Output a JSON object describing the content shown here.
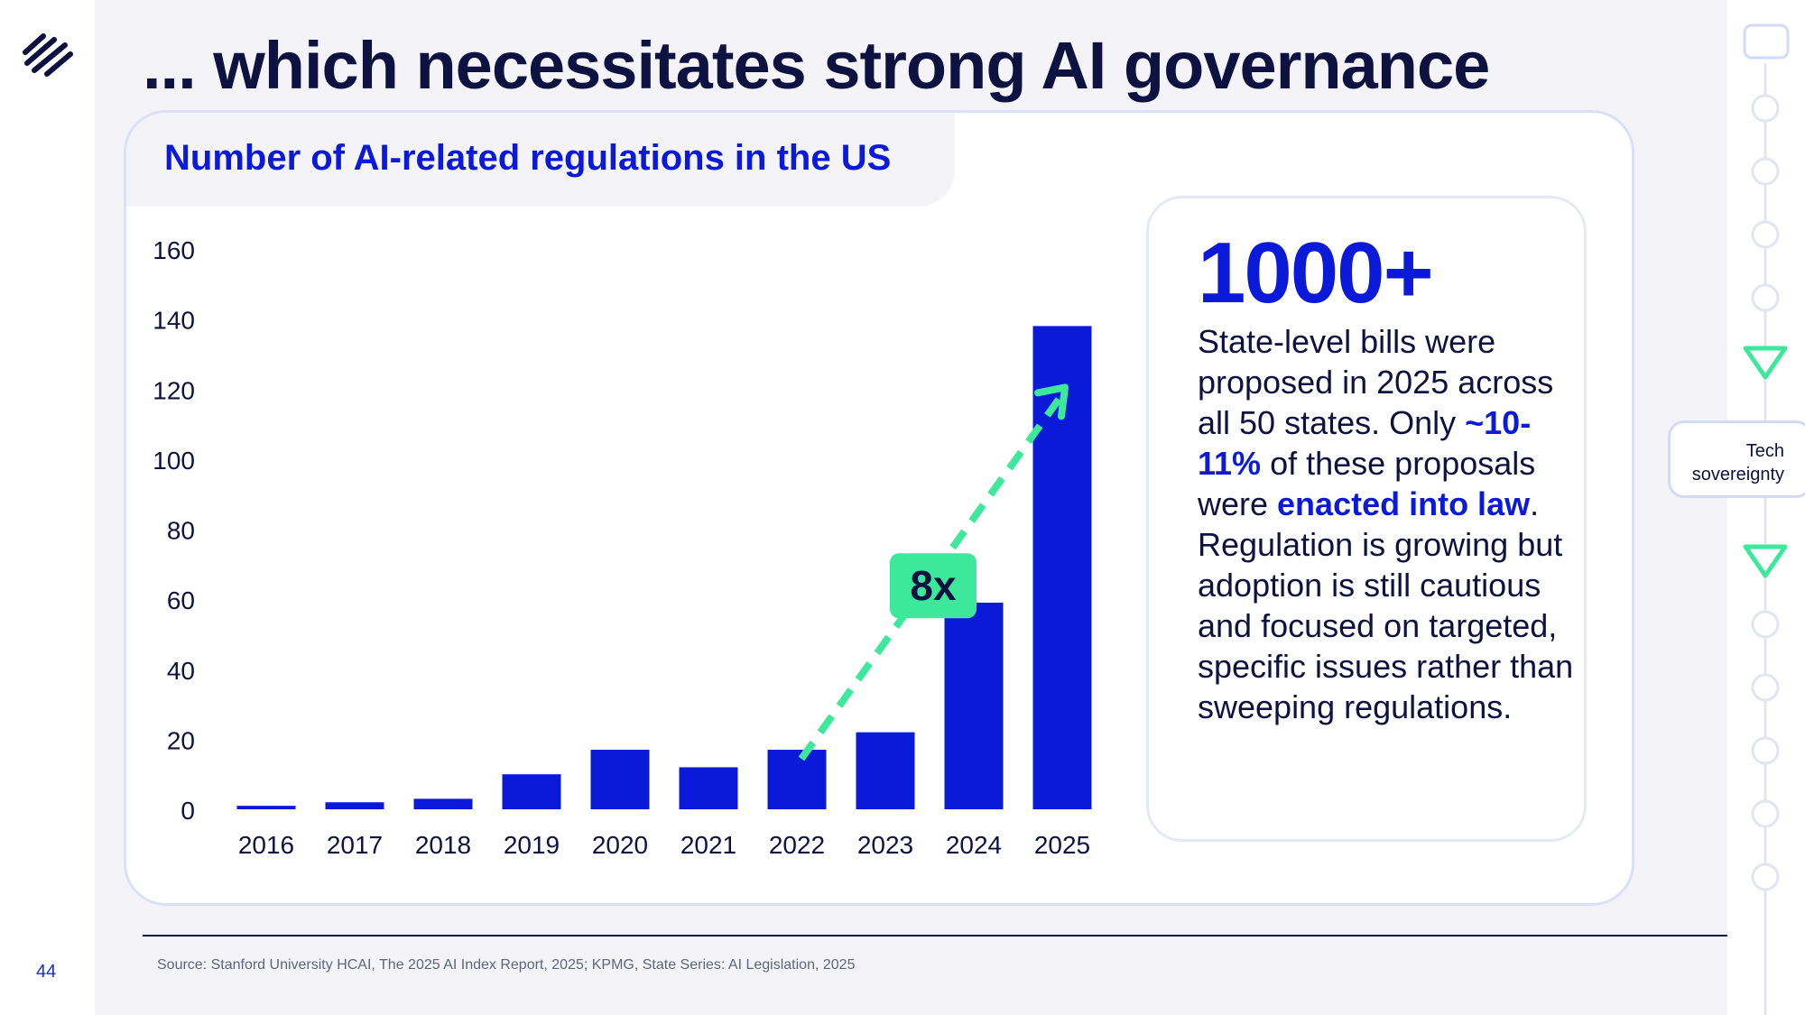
{
  "slide": {
    "title": "... which necessitates strong AI governance",
    "page_number": "44",
    "source": "Source: Stanford University HCAI, The 2025 AI Index Report, 2025; KPMG, State Series: AI Legislation, 2025",
    "section_label": "Tech\nsovereignty"
  },
  "chart_data": {
    "type": "bar",
    "title": "Number of AI-related regulations in the US",
    "categories": [
      "2016",
      "2017",
      "2018",
      "2019",
      "2020",
      "2021",
      "2022",
      "2023",
      "2024",
      "2025"
    ],
    "values": [
      1,
      2,
      3,
      10,
      17,
      12,
      17,
      22,
      59,
      138
    ],
    "ylim": [
      0,
      160
    ],
    "yticks": [
      "0",
      "20",
      "40",
      "60",
      "80",
      "100",
      "120",
      "140",
      "160"
    ],
    "grid": false,
    "bar_color": "#0b1ad9",
    "annotation": {
      "label": "8x",
      "from_category": "2022",
      "to_category": "2025",
      "color": "#3ee89a"
    }
  },
  "stat": {
    "number": "1000+",
    "text_1": "State-level bills were proposed in 2025 across all 50 states. Only ",
    "highlight_1": "~10-11%",
    "text_2": " of these proposals were ",
    "highlight_2": "enacted into law",
    "text_3": ". Regulation is growing but adoption is still cautious and focused on targeted, specific issues rather than sweeping regulations."
  },
  "colors": {
    "brand_blue": "#0b1ad9",
    "navy": "#0d1240",
    "accent_green": "#3ee89a"
  },
  "icons": {
    "logo": "diagonal-stripes-logo",
    "rail": [
      "square-node-icon",
      "circle-node-icon",
      "triangle-down-icon"
    ]
  }
}
